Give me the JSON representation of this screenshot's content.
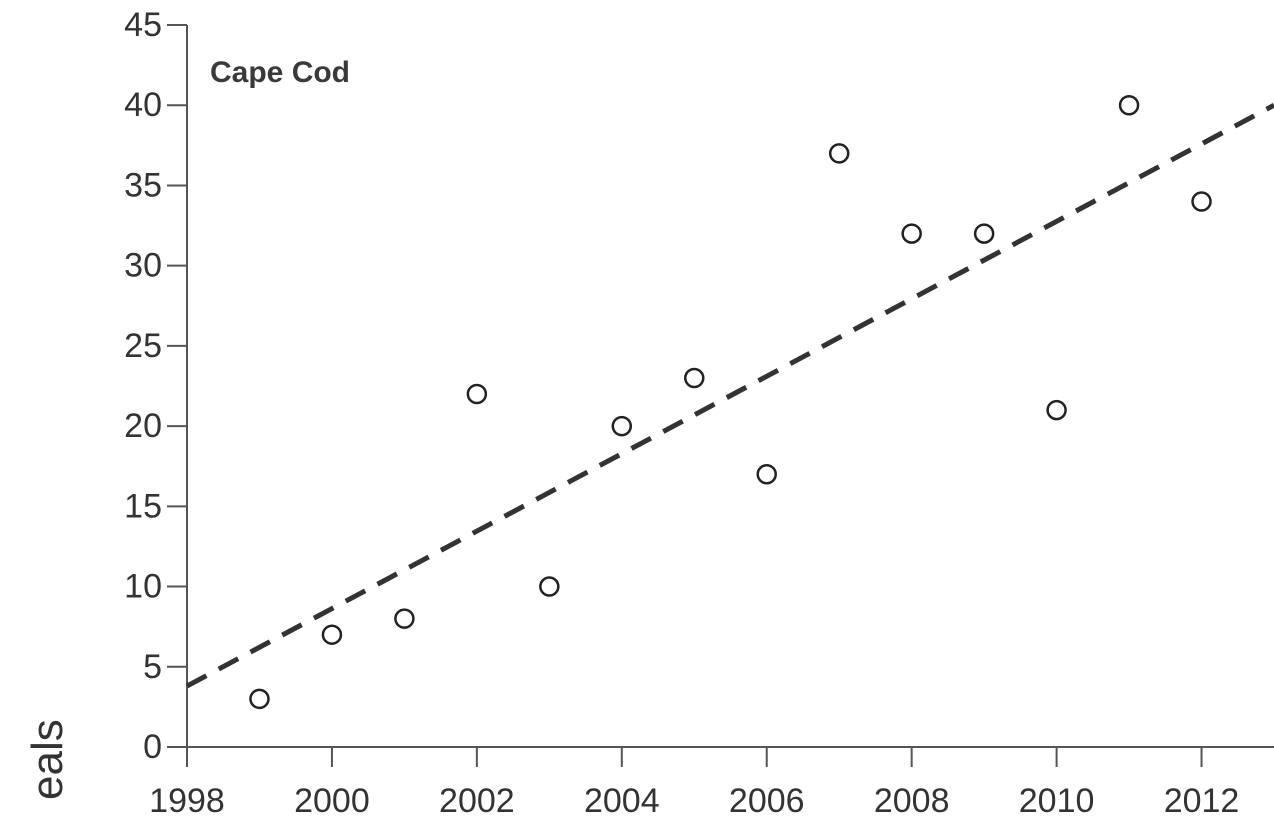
{
  "chart_data": {
    "type": "scatter",
    "panel_label": "Cape Cod",
    "ylabel_visible": "eals",
    "x": [
      1999,
      2000,
      2001,
      2002,
      2003,
      2004,
      2005,
      2006,
      2007,
      2008,
      2009,
      2010,
      2011,
      2012
    ],
    "y": [
      3,
      7,
      8,
      22,
      10,
      20,
      23,
      17,
      37,
      32,
      32,
      21,
      40,
      34
    ],
    "trendline": {
      "style": "dashed",
      "start": {
        "x": 1998,
        "y": 3.8
      },
      "end": {
        "x": 2013,
        "y": 40
      }
    },
    "xlim": [
      1998,
      2013
    ],
    "ylim": [
      0,
      45
    ],
    "x_ticks": [
      1998,
      2000,
      2002,
      2004,
      2006,
      2008,
      2010,
      2012
    ],
    "y_ticks": [
      0,
      5,
      10,
      15,
      20,
      25,
      30,
      35,
      40,
      45
    ],
    "grid": false,
    "colors": {
      "axis": "#555555",
      "marker": "#222222",
      "trendline": "#333333"
    }
  }
}
